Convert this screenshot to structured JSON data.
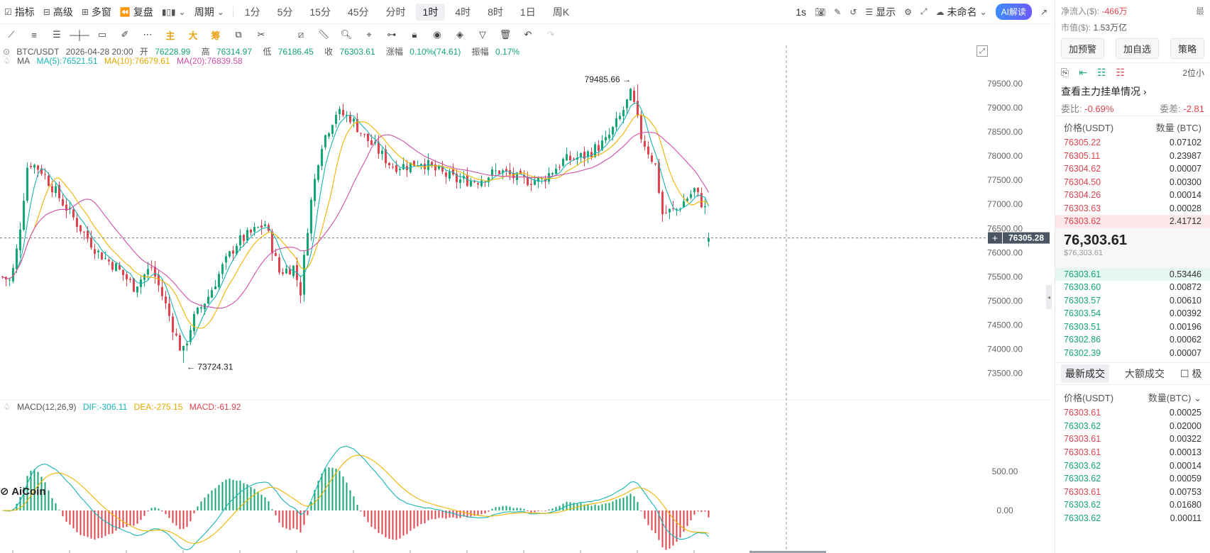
{
  "toolbar": {
    "items": [
      "指标",
      "高级",
      "多窗",
      "复盘"
    ],
    "period_label": "周期",
    "periods": [
      "1分",
      "5分",
      "15分",
      "45分",
      "分时",
      "1时",
      "4时",
      "8时",
      "1日",
      "周K"
    ],
    "active_period": "1时",
    "interval": "1s",
    "display_label": "显示",
    "layout_name": "未命名",
    "ai_label": "AI解读"
  },
  "drawtools": {
    "main": "主",
    "big": "大",
    "chip": "筹"
  },
  "legend": {
    "symbol": "BTC/USDT",
    "datetime": "2026-04-28 20:00",
    "open_label": "开",
    "open": "76228.99",
    "high_label": "高",
    "high": "76314.97",
    "low_label": "低",
    "low": "76186.45",
    "close_label": "收",
    "close": "76303.61",
    "change_label": "涨幅",
    "change": "0.10%(74.61)",
    "amp_label": "振幅",
    "amp": "0.17%",
    "ma_label": "MA",
    "ma5": "MA(5):76521.51",
    "ma10": "MA(10):76679.61",
    "ma20": "MA(20):76839.58",
    "macd_label": "MACD(12,26,9)",
    "dif": "DIF:-306.11",
    "dea": "DEA:-275.15",
    "macd": "MACD:-61.92"
  },
  "colors": {
    "up": "#14a673",
    "down": "#e0434d",
    "ma5": "#18b4b4",
    "ma10": "#f0b400",
    "ma20": "#d14fa8"
  },
  "chart_data": {
    "type": "candlestick",
    "y_ticks": [
      79500,
      79000,
      78500,
      78000,
      77500,
      77000,
      76500,
      76000,
      75500,
      75000,
      74500,
      74000,
      73500
    ],
    "ylim": [
      73100,
      79850
    ],
    "macd_ticks": [
      "500.00",
      "0.00"
    ],
    "high_marker": "79485.66",
    "low_marker": "73724.31",
    "last_price": "76305.28",
    "watermark": "AiCoin"
  },
  "panel": {
    "net_inflow_label": "净流入($):",
    "net_inflow": "-466万",
    "cap_label": "市值($):",
    "cap": "1.53万亿",
    "corner_label": "最",
    "buttons": [
      "加预警",
      "加自选",
      "策略"
    ],
    "decimals": "2位小",
    "depth_link": "查看主力挂单情况",
    "ratio_label": "委比:",
    "ratio": "-0.69%",
    "diff_label": "委差:",
    "diff": "-2.81",
    "price_col": "价格(USDT)",
    "qty_col": "数量 (BTC)",
    "asks": [
      {
        "p": "76305.22",
        "q": "0.07102"
      },
      {
        "p": "76305.11",
        "q": "0.23987"
      },
      {
        "p": "76304.62",
        "q": "0.00007"
      },
      {
        "p": "76304.50",
        "q": "0.00300"
      },
      {
        "p": "76304.26",
        "q": "0.00014"
      },
      {
        "p": "76303.63",
        "q": "0.00028"
      },
      {
        "p": "76303.62",
        "q": "2.41712"
      }
    ],
    "last_price": "76,303.61",
    "last_usd": "$76,303.61",
    "bids": [
      {
        "p": "76303.61",
        "q": "0.53446"
      },
      {
        "p": "76303.60",
        "q": "0.00872"
      },
      {
        "p": "76303.57",
        "q": "0.00610"
      },
      {
        "p": "76303.54",
        "q": "0.00392"
      },
      {
        "p": "76303.51",
        "q": "0.00196"
      },
      {
        "p": "76302.86",
        "q": "0.00062"
      },
      {
        "p": "76302.39",
        "q": "0.00007"
      }
    ],
    "tab_latest": "最新成交",
    "tab_large": "大额成交",
    "tab_check": "极",
    "trade_price_col": "价格(USDT)",
    "trade_qty_col": "数量(BTC)",
    "trades": [
      {
        "p": "76303.61",
        "q": "0.00025",
        "s": "down"
      },
      {
        "p": "76303.62",
        "q": "0.02000",
        "s": "up"
      },
      {
        "p": "76303.61",
        "q": "0.00322",
        "s": "down"
      },
      {
        "p": "76303.61",
        "q": "0.00013",
        "s": "down"
      },
      {
        "p": "76303.62",
        "q": "0.00014",
        "s": "up"
      },
      {
        "p": "76303.62",
        "q": "0.00059",
        "s": "up"
      },
      {
        "p": "76303.61",
        "q": "0.00753",
        "s": "down"
      },
      {
        "p": "76303.62",
        "q": "0.01680",
        "s": "up"
      },
      {
        "p": "76303.62",
        "q": "0.00011",
        "s": "up"
      }
    ]
  }
}
